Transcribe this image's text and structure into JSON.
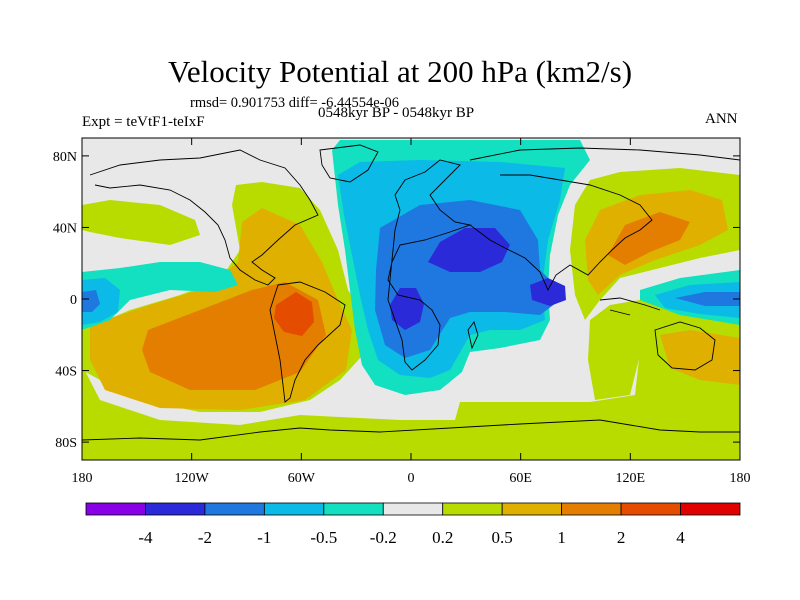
{
  "title": "Velocity Potential at 200 hPa (km2/s)",
  "stats": "rmsd= 0.901753  diff= -6.44554e-06",
  "left_label": "Expt = teVtF1-teIxF",
  "center_label": "0548kyr BP - 0548kyr BP",
  "right_label": "ANN",
  "map": {
    "projection": "cylindrical-equidistant",
    "lon_range": [
      -180,
      180
    ],
    "lat_range": [
      -90,
      90
    ],
    "lat_ticks": [
      {
        "value": 80,
        "label": "80N"
      },
      {
        "value": 40,
        "label": "40N"
      },
      {
        "value": 0,
        "label": "0"
      },
      {
        "value": -40,
        "label": "40S"
      },
      {
        "value": -80,
        "label": "80S"
      }
    ],
    "lon_ticks": [
      {
        "value": -180,
        "label": "180"
      },
      {
        "value": -120,
        "label": "120W"
      },
      {
        "value": -60,
        "label": "60W"
      },
      {
        "value": 0,
        "label": "0"
      },
      {
        "value": 60,
        "label": "60E"
      },
      {
        "value": 120,
        "label": "120E"
      },
      {
        "value": 180,
        "label": "180"
      }
    ]
  },
  "colorbar": {
    "colors": [
      "#8a00e6",
      "#2a2ad8",
      "#1f78e0",
      "#0bbae6",
      "#12e0c0",
      "#e8e8e8",
      "#b8dc00",
      "#e0b000",
      "#e47e00",
      "#e44c00",
      "#e00000"
    ],
    "labels": [
      "-4",
      "-2",
      "-1",
      "-0.5",
      "-0.2",
      "0.2",
      "0.5",
      "1",
      "2",
      "4"
    ]
  }
}
